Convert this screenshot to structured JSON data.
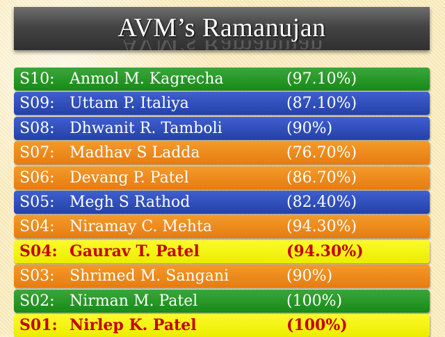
{
  "title": "AVM’s Ramanujan",
  "colors": {
    "green": "#1f931f",
    "blue": "#2f4dbc",
    "orange": "#ee8a1a",
    "yellow": "#f5f512",
    "highlight_text": "#c40000"
  },
  "rows": [
    {
      "code": "S10:",
      "name": "Anmol M. Kagrecha",
      "percent": "(97.10%)",
      "color": "green"
    },
    {
      "code": "S09:",
      "name": "Uttam P. Italiya",
      "percent": "(87.10%)",
      "color": "blue"
    },
    {
      "code": "S08:",
      "name": "Dhwanit R. Tamboli",
      "percent": "(90%)",
      "color": "blue"
    },
    {
      "code": "S07:",
      "name": "Madhav S Ladda",
      "percent": "(76.70%)",
      "color": "orange"
    },
    {
      "code": "S06:",
      "name": "Devang P. Patel",
      "percent": "(86.70%)",
      "color": "orange"
    },
    {
      "code": "S05:",
      "name": "Megh S Rathod",
      "percent": "(82.40%)",
      "color": "blue"
    },
    {
      "code": "S04:",
      "name": "Niramay C. Mehta",
      "percent": "(94.30%)",
      "color": "orange"
    },
    {
      "code": "S04:",
      "name": "Gaurav T. Patel",
      "percent": "(94.30%)",
      "color": "yellow"
    },
    {
      "code": "S03:",
      "name": "Shrimed M. Sangani",
      "percent": "(90%)",
      "color": "orange"
    },
    {
      "code": "S02:",
      "name": "Nirman M. Patel",
      "percent": "(100%)",
      "color": "green"
    },
    {
      "code": "S01:",
      "name": "Nirlep K. Patel",
      "percent": "(100%)",
      "color": "yellow"
    }
  ]
}
